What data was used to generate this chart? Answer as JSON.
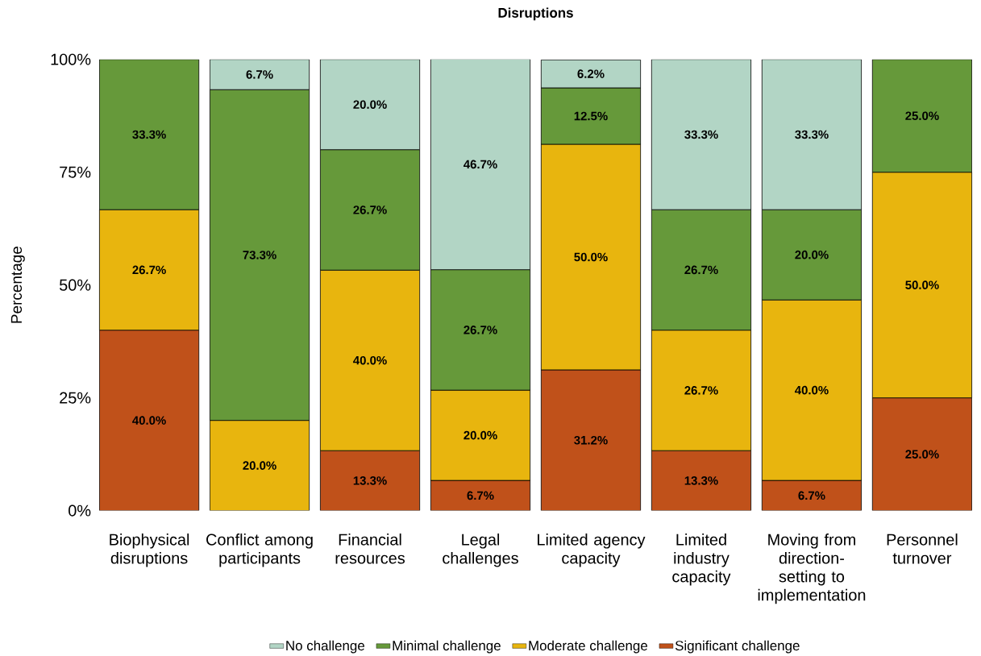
{
  "chart_data": {
    "type": "bar",
    "title": "Disruptions",
    "ylabel": "Percentage",
    "categories": [
      "Biophysical disruptions",
      "Conflict among participants",
      "Financial resources",
      "Legal challenges",
      "Limited agency capacity",
      "Limited industry capacity",
      "Moving from direction-setting to implementation",
      "Personnel turnover"
    ],
    "stacked": true,
    "ylim": [
      0,
      100
    ],
    "yticks": [
      {
        "value": 0,
        "label": "0%"
      },
      {
        "value": 25,
        "label": "25%"
      },
      {
        "value": 50,
        "label": "50%"
      },
      {
        "value": 75,
        "label": "75%"
      },
      {
        "value": 100,
        "label": "100%"
      }
    ],
    "legend": "bottom",
    "series": [
      {
        "name": "Significant challenge",
        "color": "#c0511a",
        "values": [
          40.0,
          null,
          13.3,
          6.7,
          31.2,
          13.3,
          6.7,
          25.0
        ],
        "value_labels": [
          "40.0%",
          null,
          "13.3%",
          "6.7%",
          "31.2%",
          "13.3%",
          "6.7%",
          "25.0%"
        ]
      },
      {
        "name": "Moderate challenge",
        "color": "#e8b50e",
        "values": [
          26.7,
          20.0,
          40.0,
          20.0,
          50.0,
          26.7,
          40.0,
          50.0
        ],
        "value_labels": [
          "26.7%",
          "20.0%",
          "40.0%",
          "20.0%",
          "50.0%",
          "26.7%",
          "40.0%",
          "50.0%"
        ]
      },
      {
        "name": "Minimal challenge",
        "color": "#66993a",
        "values": [
          33.3,
          73.3,
          26.7,
          26.7,
          12.5,
          26.7,
          20.0,
          25.0
        ],
        "value_labels": [
          "33.3%",
          "73.3%",
          "26.7%",
          "26.7%",
          "12.5%",
          "26.7%",
          "20.0%",
          "25.0%"
        ]
      },
      {
        "name": "No challenge",
        "color": "#b2d5c5",
        "values": [
          null,
          6.7,
          20.0,
          46.7,
          6.2,
          33.3,
          33.3,
          null
        ],
        "value_labels": [
          null,
          "6.7%",
          "20.0%",
          "46.7%",
          "6.2%",
          "33.3%",
          "33.3%",
          null
        ]
      }
    ]
  }
}
